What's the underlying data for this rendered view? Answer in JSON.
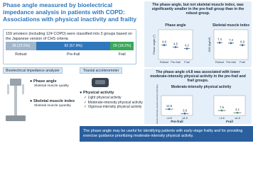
{
  "header": {
    "title": "Phase angle measured by bioelectrical impedance analysis in patients with COPD: Associations with physical inactivity and frailty"
  },
  "cohort": {
    "text": "159 smokers (including 124 COPD) were classified into 3 groups based on the Japanese version of CHS criteria",
    "groups": [
      {
        "name": "Robust",
        "count": {
          "value": 23.9,
          "label": "38 (23.9%)"
        },
        "color": "#9fb6cb"
      },
      {
        "name": "Pre-frail",
        "count": {
          "value": 57.9,
          "label": "92 (57.9%)"
        },
        "color": "#2f77bd"
      },
      {
        "name": "Frail",
        "count": {
          "value": 18.2,
          "label": "29 (18.2%)"
        },
        "color": "#3aa85a"
      }
    ]
  },
  "methods": {
    "bia": {
      "title": "Bioelectrical impedance analyzer",
      "items": [
        {
          "name": "Phase angle",
          "desc": "Skeletal muscle quality"
        },
        {
          "name": "Skeletal muscle index",
          "desc": "Skeletal muscle quantity"
        }
      ]
    },
    "accelerometer": {
      "title": "Triaxial accelerometer",
      "measure": "Physical activity",
      "items": [
        "Light physical activity",
        "Moderate-intensity physical activity",
        "Vigorous-intensity physical activity"
      ]
    }
  },
  "results": [
    {
      "text": "The phase angle, but not skeletal muscle index, was significantly smaller in the pre-frail group than in the robust group."
    },
    {
      "text": "The phase angle ≤4.8 was associated with lower moderate-intensity physical activity in the pre-frail and frail groups.",
      "title": "Moderate-intensity physical activity"
    }
  ],
  "chart_data": [
    {
      "type": "scatter",
      "title": "Phase angle",
      "y_label": "Phase angle (°)",
      "categories": [
        "Robust",
        "Pre-frail",
        "Frail"
      ],
      "values": [
        4.9,
        4.5,
        4.2
      ],
      "ylim": [
        2,
        8
      ],
      "color": "#2f77bd"
    },
    {
      "type": "scatter",
      "title": "Skeletal muscle index",
      "y_label": "SMI (kg/m²)",
      "categories": [
        "Robust",
        "Pre-frail",
        "Frail"
      ],
      "values": [
        7.4,
        7.3,
        6.9
      ],
      "ylim": [
        4,
        10
      ],
      "color": "#2f77bd"
    },
    {
      "type": "scatter",
      "title": "Pre-frail",
      "y_label": "Moderate-intensity physical activity (min/day)",
      "categories": [
        ">4.8",
        "≤4.8"
      ],
      "values": [
        12.8,
        3.9
      ],
      "ylim": [
        0,
        40
      ],
      "color": "#2f77bd"
    },
    {
      "type": "scatter",
      "title": "Frail",
      "categories": [
        ">4.8",
        "≤4.8"
      ],
      "values": [
        7.5,
        4.1
      ],
      "ylim": [
        0,
        30
      ],
      "color": "#3aa85a"
    }
  ],
  "conclusion": {
    "text": "The phase angle may be useful for identifying patients with early-stage frailty and for providing exercise guidance prioritizing moderate-intensity physical activity."
  }
}
